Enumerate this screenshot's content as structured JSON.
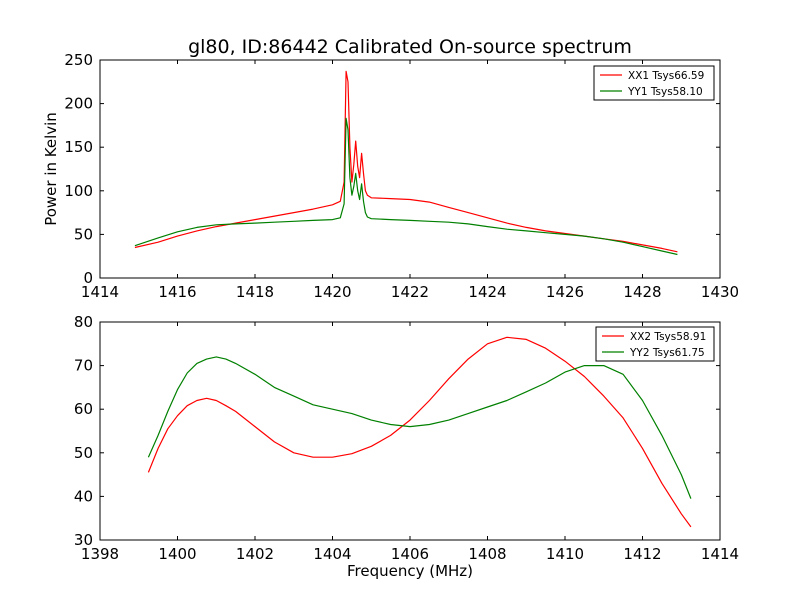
{
  "figure": {
    "title": "gl80, ID:86442 Calibrated On-source spectrum"
  },
  "chart_data": [
    {
      "type": "line",
      "title": "gl80, ID:86442 Calibrated On-source spectrum",
      "xlabel": "",
      "ylabel": "Power in Kelvin",
      "xlim": [
        1414,
        1430
      ],
      "ylim": [
        0,
        250
      ],
      "xticks": [
        1414,
        1416,
        1418,
        1420,
        1422,
        1424,
        1426,
        1428,
        1430
      ],
      "yticks": [
        0,
        50,
        100,
        150,
        200,
        250
      ],
      "xtick_labels": [
        "1414",
        "1416",
        "1418",
        "1420",
        "1422",
        "1424",
        "1426",
        "1428",
        "1430"
      ],
      "ytick_labels": [
        "0",
        "50",
        "100",
        "150",
        "200",
        "250"
      ],
      "grid": false,
      "legend_position": "top-right",
      "series": [
        {
          "name": "XX1 Tsys66.59",
          "color": "#ff0000",
          "x": [
            1414.9,
            1415.5,
            1416.0,
            1416.5,
            1417.0,
            1417.5,
            1418.0,
            1418.5,
            1419.0,
            1419.5,
            1420.0,
            1420.2,
            1420.3,
            1420.35,
            1420.4,
            1420.45,
            1420.5,
            1420.55,
            1420.6,
            1420.65,
            1420.7,
            1420.75,
            1420.8,
            1420.85,
            1420.9,
            1421.0,
            1421.5,
            1422.0,
            1422.5,
            1423.0,
            1423.5,
            1424.0,
            1424.5,
            1425.0,
            1425.5,
            1426.0,
            1426.5,
            1427.0,
            1427.5,
            1428.0,
            1428.5,
            1428.9
          ],
          "y": [
            35,
            41,
            48,
            54,
            59,
            63,
            67,
            71,
            75,
            79,
            84,
            88,
            110,
            237,
            225,
            150,
            110,
            130,
            157,
            128,
            115,
            143,
            120,
            100,
            95,
            92,
            91,
            90,
            87,
            81,
            75,
            69,
            63,
            58,
            54,
            51,
            48,
            45,
            42,
            38,
            34,
            30
          ]
        },
        {
          "name": "YY1 Tsys58.10",
          "color": "#008000",
          "x": [
            1414.9,
            1415.5,
            1416.0,
            1416.5,
            1417.0,
            1417.5,
            1418.0,
            1418.5,
            1419.0,
            1419.5,
            1420.0,
            1420.2,
            1420.3,
            1420.35,
            1420.4,
            1420.45,
            1420.5,
            1420.55,
            1420.6,
            1420.65,
            1420.7,
            1420.75,
            1420.8,
            1420.85,
            1420.9,
            1421.0,
            1421.5,
            1422.0,
            1422.5,
            1423.0,
            1423.5,
            1424.0,
            1424.5,
            1425.0,
            1425.5,
            1426.0,
            1426.5,
            1427.0,
            1427.5,
            1428.0,
            1428.5,
            1428.9
          ],
          "y": [
            37,
            46,
            53,
            58,
            61,
            62,
            63,
            64,
            65,
            66,
            67,
            69,
            85,
            183,
            170,
            115,
            95,
            105,
            120,
            100,
            90,
            108,
            88,
            75,
            70,
            68,
            67,
            66,
            65,
            64,
            62,
            59,
            56,
            54,
            52,
            50,
            48,
            45,
            41,
            36,
            31,
            27
          ]
        }
      ]
    },
    {
      "type": "line",
      "title": "",
      "xlabel": "Frequency (MHz)",
      "ylabel": "",
      "xlim": [
        1398,
        1414
      ],
      "ylim": [
        30,
        80
      ],
      "xticks": [
        1398,
        1400,
        1402,
        1404,
        1406,
        1408,
        1410,
        1412,
        1414
      ],
      "yticks": [
        30,
        40,
        50,
        60,
        70,
        80
      ],
      "xtick_labels": [
        "1398",
        "1400",
        "1402",
        "1404",
        "1406",
        "1408",
        "1410",
        "1412",
        "1414"
      ],
      "ytick_labels": [
        "30",
        "40",
        "50",
        "60",
        "70",
        "80"
      ],
      "grid": false,
      "legend_position": "top-right",
      "series": [
        {
          "name": "XX2 Tsys58.91",
          "color": "#ff0000",
          "x": [
            1399.25,
            1399.5,
            1399.75,
            1400.0,
            1400.25,
            1400.5,
            1400.75,
            1401.0,
            1401.25,
            1401.5,
            1402.0,
            1402.5,
            1403.0,
            1403.5,
            1404.0,
            1404.5,
            1405.0,
            1405.5,
            1406.0,
            1406.5,
            1407.0,
            1407.5,
            1408.0,
            1408.5,
            1409.0,
            1409.5,
            1410.0,
            1410.5,
            1411.0,
            1411.5,
            1412.0,
            1412.5,
            1413.0,
            1413.25
          ],
          "y": [
            45.5,
            51,
            55.5,
            58.5,
            60.8,
            62,
            62.5,
            62,
            60.8,
            59.5,
            56,
            52.5,
            50,
            49,
            49,
            49.8,
            51.5,
            54,
            57.5,
            62,
            67,
            71.5,
            75,
            76.5,
            76,
            74,
            71,
            67.5,
            63,
            58,
            51,
            43,
            36,
            33
          ]
        },
        {
          "name": "YY2 Tsys61.75",
          "color": "#008000",
          "x": [
            1399.25,
            1399.5,
            1399.75,
            1400.0,
            1400.25,
            1400.5,
            1400.75,
            1401.0,
            1401.25,
            1401.5,
            1402.0,
            1402.5,
            1403.0,
            1403.5,
            1404.0,
            1404.5,
            1405.0,
            1405.5,
            1406.0,
            1406.5,
            1407.0,
            1407.5,
            1408.0,
            1408.5,
            1409.0,
            1409.5,
            1410.0,
            1410.5,
            1411.0,
            1411.5,
            1412.0,
            1412.5,
            1413.0,
            1413.25
          ],
          "y": [
            49,
            54,
            59.5,
            64.5,
            68.3,
            70.5,
            71.5,
            72,
            71.5,
            70.5,
            68,
            65,
            63,
            61,
            60,
            59,
            57.5,
            56.5,
            56,
            56.5,
            57.5,
            59,
            60.5,
            62,
            64,
            66,
            68.5,
            70,
            70,
            68,
            62,
            54,
            45,
            39.5
          ]
        }
      ]
    }
  ]
}
